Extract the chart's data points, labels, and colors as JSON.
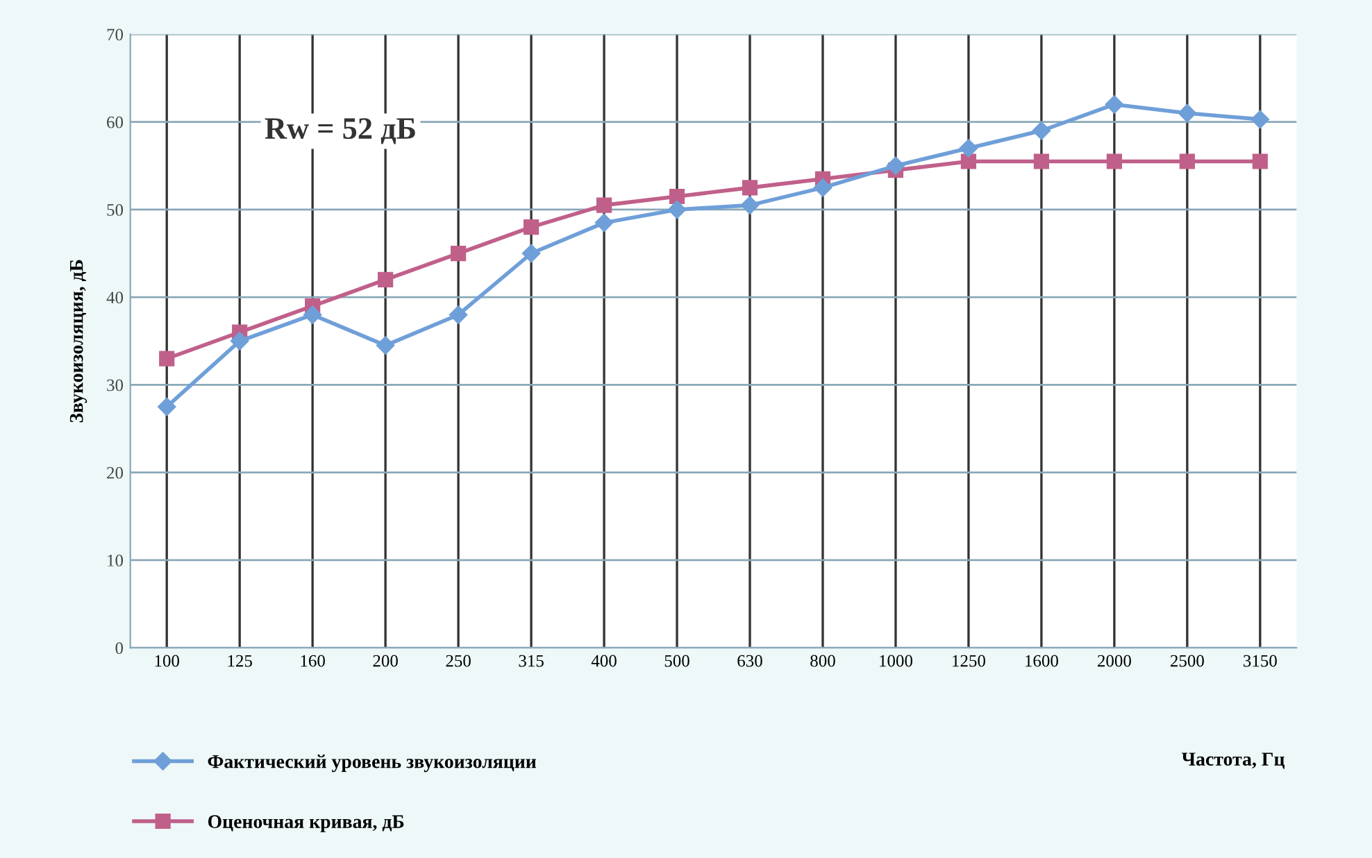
{
  "chart_data": {
    "type": "line",
    "categories": [
      "100",
      "125",
      "160",
      "200",
      "250",
      "315",
      "400",
      "500",
      "630",
      "800",
      "1000",
      "1250",
      "1600",
      "2000",
      "2500",
      "3150"
    ],
    "series": [
      {
        "name": "Фактический уровень звукоизоляции",
        "color": "#6f9fd8",
        "marker": "diamond",
        "values": [
          27.5,
          35,
          38,
          34.5,
          38,
          45,
          48.5,
          50,
          50.5,
          52.5,
          55,
          57,
          59,
          62,
          61,
          60.3
        ]
      },
      {
        "name": "Оценочная кривая, дБ",
        "color": "#c0608a",
        "marker": "square",
        "values": [
          33,
          36,
          39,
          42,
          45,
          48,
          50.5,
          51.5,
          52.5,
          53.5,
          54.5,
          55.5,
          55.5,
          55.5,
          55.5,
          55.5
        ]
      }
    ],
    "ylabel": "Звукоизоляция, дБ",
    "xlabel": "Частота, Гц",
    "annotations": [
      "Rw = 52 дБ"
    ],
    "ylim": [
      0,
      70
    ],
    "yticks": [
      0,
      10,
      20,
      30,
      40,
      50,
      60,
      70
    ],
    "grid": true,
    "legend": "bottom left",
    "line_style": "solid"
  }
}
